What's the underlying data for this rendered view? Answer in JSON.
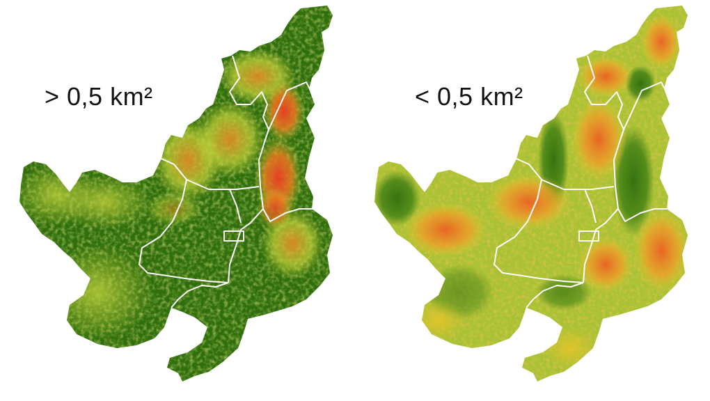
{
  "panels": [
    {
      "id": "left",
      "label": "> 0,5 km²",
      "palette": {
        "base": "#2f6e0c",
        "mid": "#c8d43a",
        "high": "#f27b1f",
        "hot": "#ee3b24"
      }
    },
    {
      "id": "right",
      "label": "< 0,5 km²",
      "palette": {
        "base": "#b7c935",
        "mid": "#e6c42a",
        "high": "#f08a24",
        "hot": "#2f6e0c"
      }
    }
  ],
  "colors": {
    "forest": "#2f6e0c",
    "yellow_green": "#c8d43a",
    "yellow": "#e6d02f",
    "orange": "#f08a24",
    "red": "#ee3b24",
    "boundary": "#ffffff"
  }
}
